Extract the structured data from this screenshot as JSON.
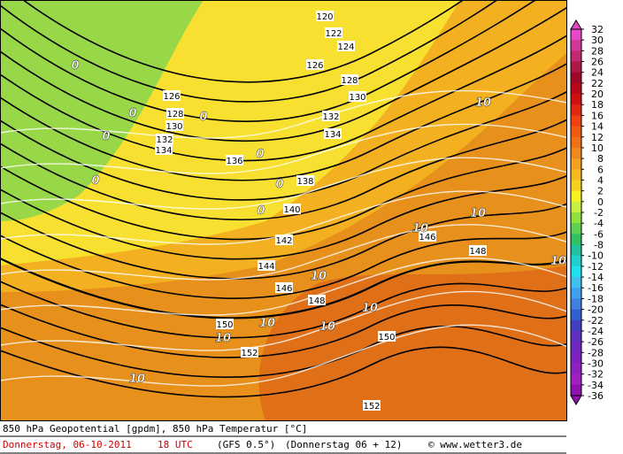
{
  "map": {
    "geopotential_labels": [
      120,
      122,
      124,
      126,
      128,
      130,
      132,
      134,
      136,
      138,
      140,
      142,
      144,
      146,
      148,
      150,
      152,
      146,
      148,
      126,
      128,
      130,
      132,
      134,
      150,
      152
    ],
    "temperature_labels": [
      0,
      0,
      0,
      0,
      0,
      0,
      0,
      0,
      10,
      10,
      10,
      10,
      10,
      10,
      10,
      10,
      10,
      10
    ]
  },
  "legend": {
    "labels": [
      32,
      30,
      28,
      26,
      24,
      22,
      20,
      18,
      16,
      14,
      12,
      10,
      8,
      6,
      4,
      2,
      0,
      -2,
      -4,
      -6,
      -8,
      -10,
      -12,
      -14,
      -16,
      -18,
      -20,
      -22,
      -24,
      -26,
      -28,
      -30,
      -32,
      -34,
      -36
    ],
    "colors": [
      "#e648c8",
      "#d0389a",
      "#c02870",
      "#b01848",
      "#a00828",
      "#b80818",
      "#d01010",
      "#e02810",
      "#f04010",
      "#f05a10",
      "#f07018",
      "#f08820",
      "#f5a020",
      "#f8b820",
      "#f8d020",
      "#f8f020",
      "#c8f040",
      "#90e040",
      "#60d050",
      "#30c060",
      "#20c0a0",
      "#20d0d0",
      "#20e0f0",
      "#40c0f0",
      "#40a0f0",
      "#4080e0",
      "#3060d0",
      "#4040c0",
      "#6030c0",
      "#7028c0",
      "#8020c0",
      "#9020c0",
      "#a020c0",
      "#9010b0"
    ]
  },
  "footer": {
    "title": "850 hPa Geopotential [gpdm], 850 hPa Temperatur [°C]",
    "date": "Donnerstag, 06-10-2011",
    "time": "18 UTC",
    "model": "(GFS 0.5°)",
    "run": "(Donnerstag 06 + 12)",
    "credit": "© www.wetter3.de"
  }
}
